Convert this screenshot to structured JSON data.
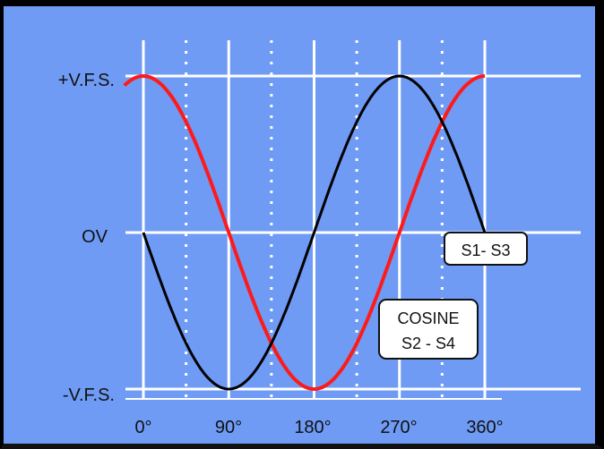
{
  "chart_data": {
    "type": "line",
    "xlabel": "",
    "ylabel": "",
    "x_ticks": [
      0,
      90,
      180,
      270,
      360
    ],
    "x_tick_labels": [
      "0°",
      "90°",
      "180°",
      "270°",
      "360°"
    ],
    "y_tick_labels": [
      "+V.F.S.",
      "OV",
      "-V.F.S."
    ],
    "y_range": [
      -1,
      1
    ],
    "x_range": [
      0,
      360
    ],
    "grid": true,
    "series": [
      {
        "name": "COSINE S2 - S4",
        "color": "#ff1a1a",
        "x": [
          0,
          90,
          180,
          270,
          360
        ],
        "y": [
          1,
          0,
          -1,
          0,
          1
        ]
      },
      {
        "name": "S1- S3",
        "color": "#000000",
        "x": [
          0,
          90,
          180,
          270,
          360
        ],
        "y": [
          0.1,
          -1,
          0,
          1,
          0
        ]
      }
    ],
    "annotations": {
      "s1s3": "S1- S3",
      "cosine_line1": "COSINE",
      "cosine_line2": "S2 - S4"
    }
  }
}
